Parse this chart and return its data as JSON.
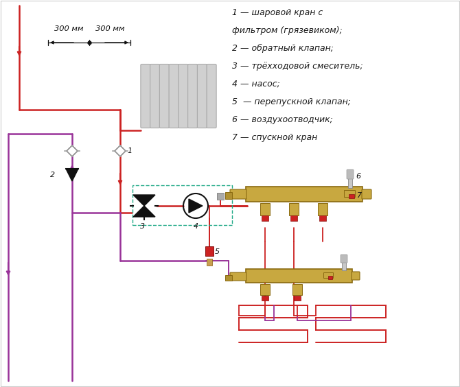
{
  "legend_lines": [
    "1 — шаровой кран с",
    "фильтром (грязевиком);",
    "2 — обратный клапан;",
    "3 — трёхходовой смеситель;",
    "4 — насос;",
    "5  — перепускной клапан;",
    "6 — воздухоотводчик;",
    "7 — спускной кран"
  ],
  "dim_text_left": "300 мм",
  "dim_text_right": "300 мм",
  "color_red": "#cc2222",
  "color_purple": "#993399",
  "color_dashed": "#22aa88",
  "color_manifold": "#c8a840",
  "color_manifold_edge": "#8a6a10",
  "color_black": "#111111",
  "color_bg": "#ffffff",
  "lw_pipe": 1.8,
  "lw_thin": 1.2
}
